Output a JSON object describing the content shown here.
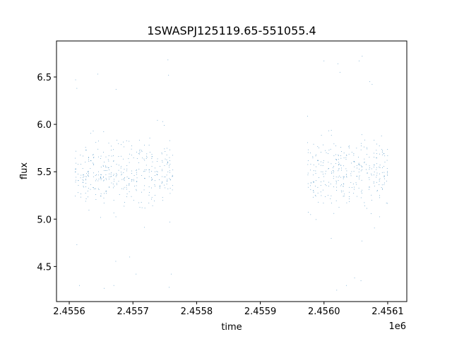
{
  "chart_data": {
    "type": "scatter",
    "title": "1SWASPJ125119.65-551055.4",
    "xlabel": "time",
    "ylabel": "flux",
    "x_offset_label": "1e6",
    "xlim": [
      2.45558,
      2.45613
    ],
    "ylim": [
      4.13,
      6.88
    ],
    "x_ticks": [
      2.4556,
      2.4557,
      2.4558,
      2.4559,
      2.456,
      2.4561
    ],
    "x_tick_labels": [
      "2.4556",
      "2.4557",
      "2.4558",
      "2.4559",
      "2.4560",
      "2.4561"
    ],
    "y_ticks": [
      4.5,
      5.0,
      5.5,
      6.0,
      6.5
    ],
    "y_tick_labels": [
      "4.5",
      "5.0",
      "5.5",
      "6.0",
      "6.5"
    ],
    "grid": false,
    "legend": "none",
    "marker_color": "#1f77b4",
    "series": [
      {
        "segments": [
          {
            "x_start": 2.45561,
            "x_end": 2.455765,
            "center": 5.48,
            "spread": 0.17
          },
          {
            "x_start": 2.455975,
            "x_end": 2.4561,
            "center": 5.48,
            "spread": 0.17
          }
        ],
        "outliers": [
          {
            "x": 2.45561,
            "y": 6.47
          },
          {
            "x": 2.455612,
            "y": 6.38
          },
          {
            "x": 2.455612,
            "y": 4.73
          },
          {
            "x": 2.455616,
            "y": 4.3
          },
          {
            "x": 2.455645,
            "y": 6.53
          },
          {
            "x": 2.455655,
            "y": 4.27
          },
          {
            "x": 2.45567,
            "y": 4.3
          },
          {
            "x": 2.455695,
            "y": 4.6
          },
          {
            "x": 2.455705,
            "y": 4.42
          },
          {
            "x": 2.455755,
            "y": 6.68
          },
          {
            "x": 2.455756,
            "y": 6.52
          },
          {
            "x": 2.455757,
            "y": 4.28
          },
          {
            "x": 2.45576,
            "y": 4.42
          },
          {
            "x": 2.45606,
            "y": 6.72
          },
          {
            "x": 2.456055,
            "y": 6.67
          },
          {
            "x": 2.456022,
            "y": 6.64
          },
          {
            "x": 2.456025,
            "y": 6.55
          },
          {
            "x": 2.456,
            "y": 6.67
          },
          {
            "x": 2.456035,
            "y": 4.3
          },
          {
            "x": 2.456058,
            "y": 4.35
          },
          {
            "x": 2.456048,
            "y": 4.38
          },
          {
            "x": 2.45602,
            "y": 4.25
          },
          {
            "x": 2.456072,
            "y": 6.45
          }
        ]
      }
    ]
  }
}
